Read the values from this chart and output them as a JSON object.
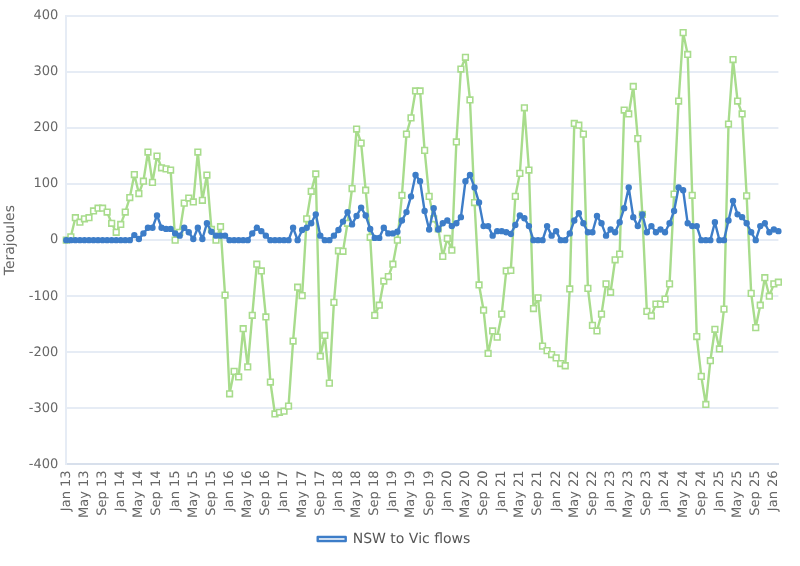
{
  "chart_data": {
    "type": "line",
    "ylabel": "Terajoules",
    "categories": [
      "Jan 13",
      null,
      null,
      null,
      "May 13",
      null,
      null,
      null,
      "Sep 13",
      null,
      null,
      null,
      "Jan 14",
      null,
      null,
      null,
      "May 14",
      null,
      null,
      null,
      "Sep 14",
      null,
      null,
      null,
      "Jan 15",
      null,
      null,
      null,
      "May 15",
      null,
      null,
      null,
      "Sep 15",
      null,
      null,
      null,
      "Jan 16",
      null,
      null,
      null,
      "May 16",
      null,
      null,
      null,
      "Sep 16",
      null,
      null,
      null,
      "Jan 17",
      null,
      null,
      null,
      "May 17",
      null,
      null,
      null,
      "Sep 17",
      null,
      null,
      null,
      "Jan 18",
      null,
      null,
      null,
      "May 18",
      null,
      null,
      null,
      "Sep 18",
      null,
      null,
      null,
      "Jan 19",
      null,
      null,
      null,
      "May 19",
      null,
      null,
      null,
      "Sep 19",
      null,
      null,
      null,
      "Jan 20",
      null,
      null,
      null,
      "May 20",
      null,
      null,
      null,
      "Sep 20",
      null,
      null,
      null,
      "Jan 21",
      null,
      null,
      null,
      "May 21",
      null,
      null,
      null,
      "Sep 21",
      null,
      null,
      null,
      "Jan 22",
      null,
      null,
      null,
      "May 22",
      null,
      null,
      null,
      "Sep 22",
      null,
      null,
      null,
      "Jan 23",
      null,
      null,
      null,
      "May 23",
      null,
      null,
      null,
      "Sep 23",
      null,
      null,
      null,
      "Jan 24",
      null,
      null,
      null,
      "May 24",
      null,
      null,
      null,
      "Sep 24",
      null,
      null,
      null,
      "Jan 25",
      null,
      null,
      null,
      "May 25",
      null,
      null,
      null,
      "Sep 25",
      null,
      null,
      null,
      "Jan 26",
      null
    ],
    "series": [
      {
        "name": "NSW to Vic flows",
        "color": "#3d7dc8",
        "marker": "circle",
        "values": [
          0,
          0,
          0,
          0,
          0,
          0,
          0,
          0,
          0,
          0,
          0,
          0,
          0,
          0,
          0,
          9,
          2,
          12,
          22,
          22,
          44,
          22,
          20,
          20,
          12,
          8,
          22,
          14,
          2,
          22,
          2,
          30,
          15,
          8,
          8,
          8,
          0,
          0,
          0,
          0,
          0,
          12,
          22,
          16,
          8,
          0,
          0,
          0,
          0,
          0,
          22,
          0,
          18,
          22,
          30,
          46,
          8,
          0,
          0,
          8,
          18,
          33,
          50,
          28,
          43,
          58,
          44,
          20,
          4,
          4,
          22,
          12,
          12,
          15,
          35,
          50,
          78,
          116,
          105,
          52,
          19,
          57,
          19,
          30,
          35,
          25,
          30,
          41,
          105,
          116,
          94,
          67,
          25,
          25,
          8,
          16,
          16,
          14,
          11,
          27,
          44,
          39,
          25,
          0,
          0,
          0,
          25,
          8,
          16,
          0,
          0,
          12,
          35,
          48,
          30,
          14,
          14,
          43,
          30,
          8,
          19,
          14,
          32,
          57,
          94,
          41,
          25,
          46,
          14,
          25,
          14,
          19,
          14,
          30,
          52,
          94,
          89,
          30,
          25,
          25,
          0,
          0,
          0,
          32,
          0,
          0,
          35,
          70,
          46,
          41,
          30,
          14,
          0,
          25,
          30,
          14,
          19,
          16
        ]
      },
      {
        "color": "#a8dc8c",
        "marker": "square",
        "values": [
          0,
          6,
          40,
          32,
          38,
          40,
          52,
          57,
          57,
          50,
          30,
          14,
          28,
          50,
          76,
          117,
          83,
          105,
          157,
          103,
          150,
          129,
          127,
          125,
          0,
          14,
          66,
          75,
          68,
          157,
          71,
          116,
          19,
          0,
          24,
          -98,
          -274,
          -234,
          -244,
          -158,
          -226,
          -134,
          -43,
          -55,
          -137,
          -253,
          -310,
          -307,
          -305,
          -296,
          -180,
          -84,
          -99,
          38,
          87,
          118,
          -207,
          -170,
          -255,
          -111,
          -19,
          -20,
          30,
          92,
          198,
          173,
          89,
          5,
          -134,
          -116,
          -73,
          -65,
          -43,
          0,
          80,
          189,
          218,
          266,
          266,
          160,
          78,
          38,
          20,
          -29,
          3,
          -18,
          175,
          305,
          326,
          250,
          67,
          -80,
          -125,
          -202,
          -162,
          -173,
          -132,
          -55,
          -54,
          78,
          119,
          236,
          125,
          -122,
          -103,
          -189,
          -197,
          -204,
          -210,
          -220,
          -224,
          -87,
          208,
          205,
          189,
          -86,
          -152,
          -162,
          -132,
          -78,
          -93,
          -35,
          -25,
          232,
          225,
          274,
          181,
          46,
          -127,
          -135,
          -114,
          -114,
          -105,
          -78,
          82,
          248,
          370,
          331,
          80,
          -172,
          -243,
          -293,
          -215,
          -159,
          -194,
          -123,
          207,
          322,
          248,
          225,
          79,
          -95,
          -156,
          -116,
          -67,
          -100,
          -78,
          -75
        ]
      }
    ],
    "ylim": [
      -400,
      400
    ],
    "yticks": [
      -400,
      -300,
      -200,
      -100,
      0,
      100,
      200,
      300,
      400
    ],
    "grid": "y",
    "legend": "bottom"
  }
}
